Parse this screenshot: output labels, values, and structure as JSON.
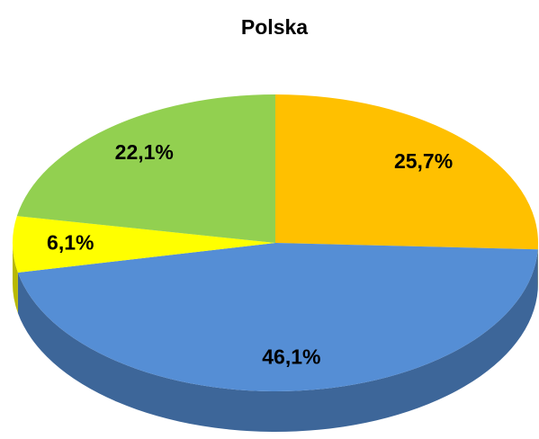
{
  "chart_data": {
    "type": "pie",
    "title": "Polska",
    "values": [
      25.7,
      46.1,
      6.1,
      22.1
    ],
    "value_labels": [
      "25,7%",
      "46,1%",
      "6,1%",
      "22,1%"
    ],
    "colors": [
      "#ffc000",
      "#558ed5",
      "#ffff00",
      "#92d050"
    ]
  }
}
